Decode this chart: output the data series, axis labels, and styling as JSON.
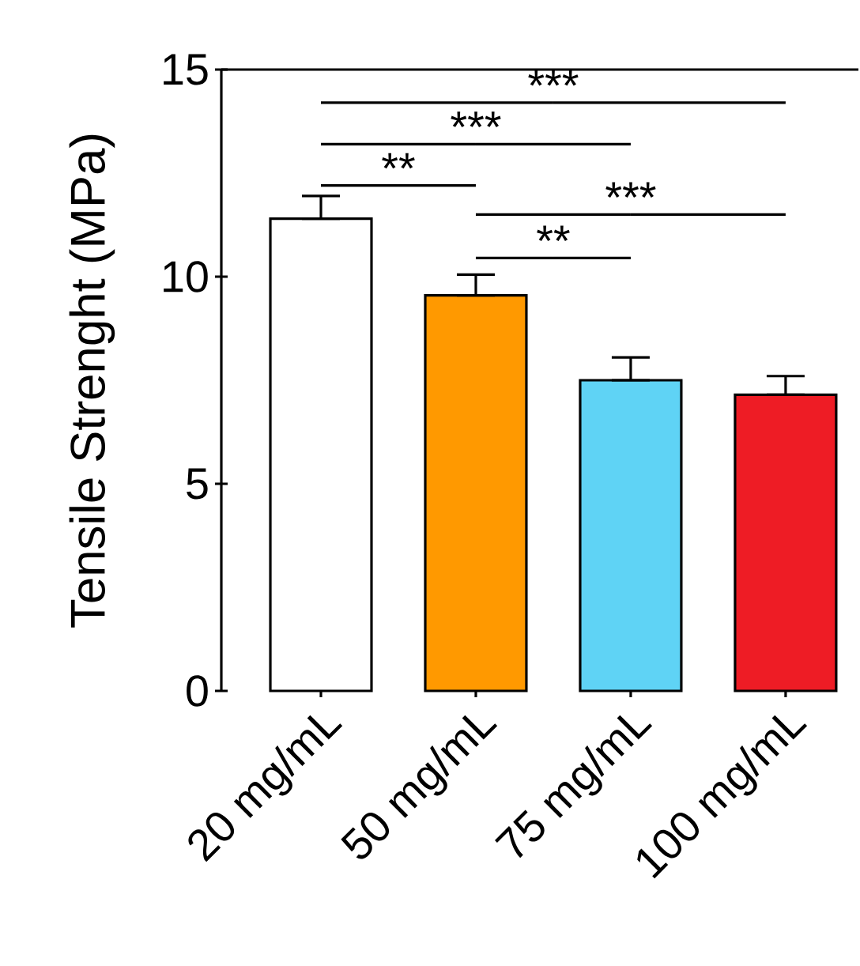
{
  "chart_data": {
    "type": "bar",
    "ylabel": "Tensile Strenght (MPa)",
    "categories": [
      "20 mg/mL",
      "50 mg/mL",
      "75 mg/mL",
      "100 mg/mL"
    ],
    "values": [
      11.4,
      9.55,
      7.5,
      7.15
    ],
    "colors": [
      "#ffffff",
      "#ff9900",
      "#5fd3f5",
      "#ee1c25"
    ],
    "errors": [
      [
        11.4,
        11.95
      ],
      [
        9.55,
        10.05
      ],
      [
        7.5,
        8.05
      ],
      [
        7.15,
        7.6
      ]
    ],
    "ylim": [
      0,
      15
    ],
    "yticks": [
      0,
      5,
      10,
      15
    ],
    "grid": false,
    "legend": false,
    "annotations": [
      "***",
      "***",
      "**",
      "***",
      "**"
    ]
  }
}
